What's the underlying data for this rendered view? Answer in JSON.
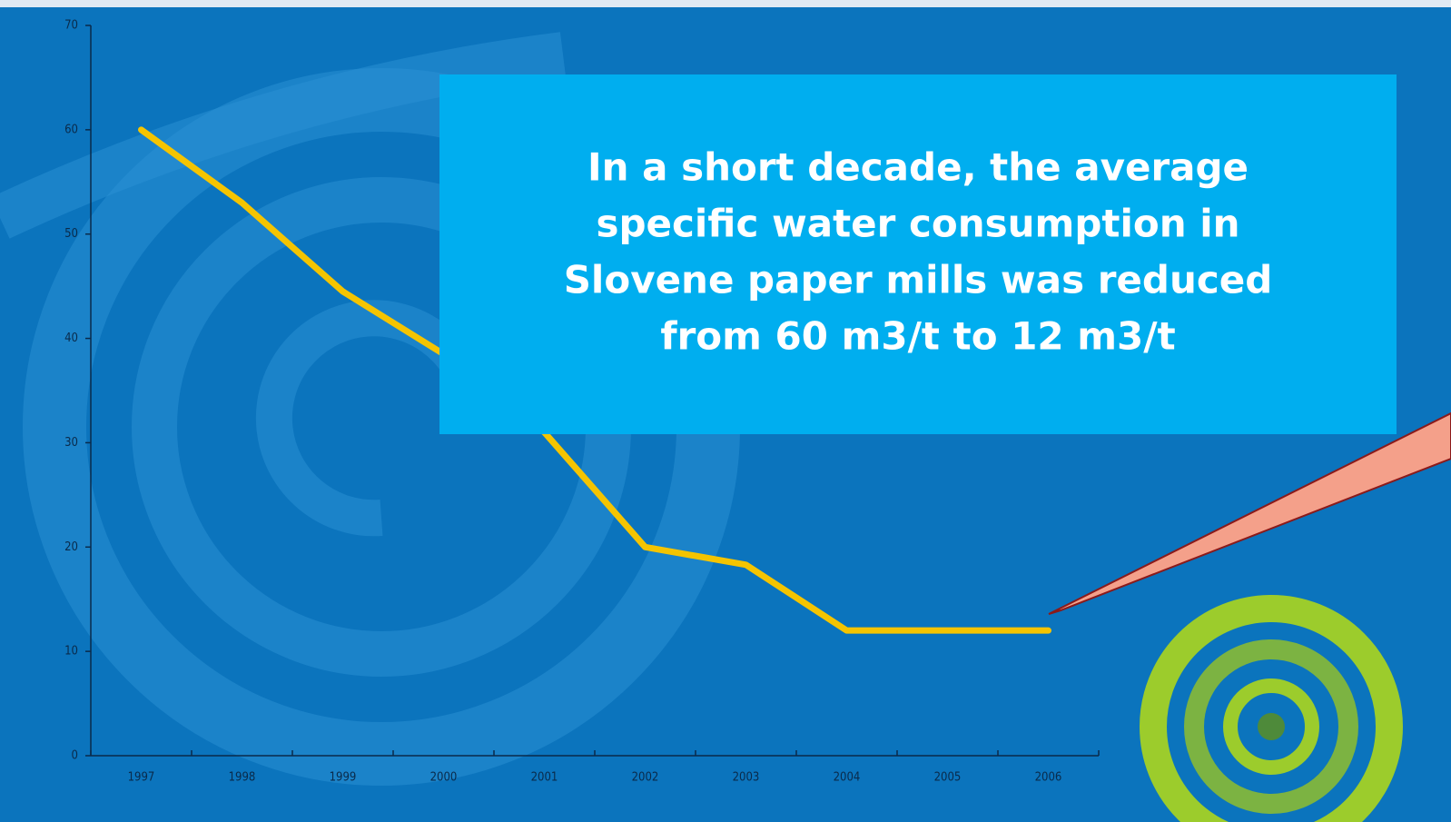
{
  "chart_data": {
    "type": "line",
    "categories": [
      "1997",
      "1998",
      "1999",
      "2000",
      "2001",
      "2002",
      "2003",
      "2004",
      "2005",
      "2006"
    ],
    "values": [
      60,
      53,
      44.5,
      38.5,
      31,
      20,
      18.3,
      12,
      12,
      12
    ],
    "color": "#f5c400",
    "ylim": [
      0,
      70
    ],
    "yticks": [
      0,
      10,
      20,
      30,
      40,
      50,
      60,
      70
    ],
    "annotation": [
      "In a short decade, the average",
      "specific water consumption in",
      "Slovene paper mills was reduced",
      "from 60 m3/t to 12 m3/t"
    ]
  }
}
